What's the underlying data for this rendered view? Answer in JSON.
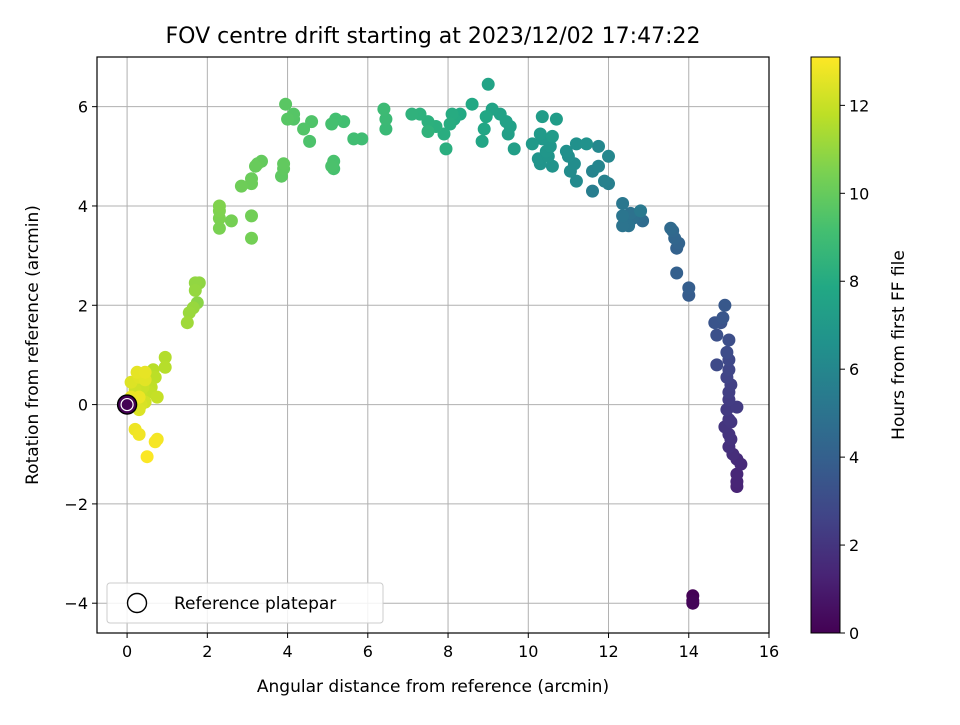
{
  "chart_data": {
    "type": "scatter",
    "title": "FOV centre drift starting at 2023/12/02 17:47:22",
    "xlabel": "Angular distance from reference (arcmin)",
    "ylabel": "Rotation from reference (arcmin)",
    "xlim": [
      -0.75,
      16.0
    ],
    "ylim": [
      -4.6,
      7.0
    ],
    "xticks": [
      0,
      2,
      4,
      6,
      8,
      10,
      12,
      14,
      16
    ],
    "yticks": [
      -4,
      -2,
      0,
      2,
      4,
      6
    ],
    "grid": true,
    "legend": {
      "placement": "lower-left",
      "entries": [
        "Reference platepar"
      ]
    },
    "reference_point": {
      "x": 0,
      "y": 0
    },
    "colorbar": {
      "label": "Hours from first FF file",
      "range": [
        0,
        13.1
      ],
      "ticks": [
        0,
        2,
        4,
        6,
        8,
        10,
        12
      ],
      "colormap": "viridis"
    },
    "series": [
      {
        "columns": [
          "x",
          "y",
          "hours"
        ],
        "points": [
          [
            14.1,
            -3.85,
            0.05
          ],
          [
            14.1,
            -3.95,
            0.1
          ],
          [
            14.1,
            -4.0,
            0.15
          ],
          [
            15.2,
            -1.65,
            1.3
          ],
          [
            15.2,
            -1.55,
            1.35
          ],
          [
            15.2,
            -1.4,
            1.45
          ],
          [
            15.3,
            -1.2,
            1.55
          ],
          [
            15.2,
            -1.1,
            1.6
          ],
          [
            15.1,
            -1.0,
            1.7
          ],
          [
            15.0,
            -0.85,
            1.8
          ],
          [
            15.05,
            -0.7,
            1.9
          ],
          [
            15.0,
            -0.6,
            1.95
          ],
          [
            14.9,
            -0.45,
            2.0
          ],
          [
            15.05,
            -0.35,
            2.05
          ],
          [
            15.0,
            -0.3,
            2.1
          ],
          [
            14.95,
            -0.1,
            2.2
          ],
          [
            15.2,
            -0.05,
            2.25
          ],
          [
            15.0,
            0.1,
            2.3
          ],
          [
            15.0,
            0.25,
            2.4
          ],
          [
            15.05,
            0.4,
            2.5
          ],
          [
            14.95,
            0.55,
            2.6
          ],
          [
            15.0,
            0.7,
            2.7
          ],
          [
            15.0,
            0.9,
            2.8
          ],
          [
            14.7,
            0.8,
            2.9
          ],
          [
            14.95,
            1.05,
            3.0
          ],
          [
            15.0,
            1.3,
            3.1
          ],
          [
            14.7,
            1.4,
            3.2
          ],
          [
            14.8,
            1.65,
            3.3
          ],
          [
            14.65,
            1.65,
            3.4
          ],
          [
            14.85,
            1.75,
            3.5
          ],
          [
            14.9,
            2.0,
            3.6
          ],
          [
            14.0,
            2.2,
            3.8
          ],
          [
            14.0,
            2.35,
            3.9
          ],
          [
            13.7,
            2.65,
            4.0
          ],
          [
            13.7,
            3.15,
            4.1
          ],
          [
            13.75,
            3.25,
            4.2
          ],
          [
            13.65,
            3.35,
            4.3
          ],
          [
            13.6,
            3.5,
            4.4
          ],
          [
            13.55,
            3.55,
            4.5
          ],
          [
            12.85,
            3.7,
            4.6
          ],
          [
            12.75,
            3.8,
            4.7
          ],
          [
            12.6,
            3.75,
            4.8
          ],
          [
            12.55,
            3.85,
            4.9
          ],
          [
            12.5,
            3.6,
            5.0
          ],
          [
            12.35,
            3.6,
            5.05
          ],
          [
            12.35,
            3.8,
            5.1
          ],
          [
            12.35,
            4.05,
            5.2
          ],
          [
            12.8,
            3.9,
            5.3
          ],
          [
            11.6,
            4.3,
            5.5
          ],
          [
            12.0,
            4.45,
            5.6
          ],
          [
            11.9,
            4.5,
            5.7
          ],
          [
            11.6,
            4.7,
            5.8
          ],
          [
            11.75,
            4.8,
            5.9
          ],
          [
            12.0,
            5.0,
            6.0
          ],
          [
            11.75,
            5.2,
            6.1
          ],
          [
            11.2,
            4.5,
            6.2
          ],
          [
            11.05,
            4.7,
            6.3
          ],
          [
            11.15,
            4.85,
            6.35
          ],
          [
            11.0,
            5.0,
            6.4
          ],
          [
            10.95,
            5.1,
            6.5
          ],
          [
            11.2,
            5.25,
            6.55
          ],
          [
            11.45,
            5.25,
            6.6
          ],
          [
            10.6,
            4.8,
            6.65
          ],
          [
            10.3,
            4.85,
            6.7
          ],
          [
            10.25,
            4.95,
            6.75
          ],
          [
            10.5,
            5.0,
            6.8
          ],
          [
            10.45,
            5.1,
            6.85
          ],
          [
            10.55,
            5.2,
            6.9
          ],
          [
            10.35,
            5.35,
            6.95
          ],
          [
            10.1,
            5.25,
            7.0
          ],
          [
            10.3,
            5.45,
            7.05
          ],
          [
            10.6,
            5.4,
            7.1
          ],
          [
            10.7,
            5.75,
            7.15
          ],
          [
            10.35,
            5.8,
            7.2
          ],
          [
            9.65,
            5.15,
            7.3
          ],
          [
            9.5,
            5.45,
            7.35
          ],
          [
            9.55,
            5.6,
            7.4
          ],
          [
            9.45,
            5.7,
            7.45
          ],
          [
            9.3,
            5.85,
            7.5
          ],
          [
            9.1,
            5.95,
            7.55
          ],
          [
            9.0,
            6.45,
            7.6
          ],
          [
            8.85,
            5.3,
            7.7
          ],
          [
            8.9,
            5.55,
            7.75
          ],
          [
            8.95,
            5.8,
            7.8
          ],
          [
            8.6,
            6.05,
            7.85
          ],
          [
            8.3,
            5.85,
            7.9
          ],
          [
            8.15,
            5.75,
            8.0
          ],
          [
            8.1,
            5.85,
            8.05
          ],
          [
            8.05,
            5.65,
            8.1
          ],
          [
            7.9,
            5.45,
            8.15
          ],
          [
            7.95,
            5.15,
            8.2
          ],
          [
            7.7,
            5.6,
            8.25
          ],
          [
            7.5,
            5.7,
            8.3
          ],
          [
            7.3,
            5.85,
            8.35
          ],
          [
            7.1,
            5.85,
            8.4
          ],
          [
            7.5,
            5.5,
            8.45
          ],
          [
            6.45,
            5.55,
            8.8
          ],
          [
            6.45,
            5.75,
            8.85
          ],
          [
            6.4,
            5.95,
            8.9
          ],
          [
            5.85,
            5.35,
            9.0
          ],
          [
            5.65,
            5.35,
            9.05
          ],
          [
            5.4,
            5.7,
            9.1
          ],
          [
            5.2,
            5.75,
            9.15
          ],
          [
            5.1,
            5.65,
            9.2
          ],
          [
            5.15,
            4.75,
            9.25
          ],
          [
            5.15,
            4.9,
            9.3
          ],
          [
            5.1,
            4.8,
            9.35
          ],
          [
            4.55,
            5.3,
            9.4
          ],
          [
            4.6,
            5.7,
            9.45
          ],
          [
            4.4,
            5.55,
            9.5
          ],
          [
            4.15,
            5.75,
            9.55
          ],
          [
            4.15,
            5.85,
            9.6
          ],
          [
            4.0,
            5.75,
            9.65
          ],
          [
            3.95,
            6.05,
            9.7
          ],
          [
            3.85,
            4.6,
            9.8
          ],
          [
            3.9,
            4.75,
            9.85
          ],
          [
            3.9,
            4.85,
            9.9
          ],
          [
            3.35,
            4.9,
            9.95
          ],
          [
            3.25,
            4.85,
            10.0
          ],
          [
            3.2,
            4.8,
            10.05
          ],
          [
            3.1,
            4.55,
            10.1
          ],
          [
            3.1,
            4.45,
            10.15
          ],
          [
            2.85,
            4.4,
            10.2
          ],
          [
            3.1,
            3.8,
            10.25
          ],
          [
            3.1,
            3.35,
            10.3
          ],
          [
            2.6,
            3.7,
            10.35
          ],
          [
            2.3,
            3.55,
            10.45
          ],
          [
            2.3,
            3.75,
            10.5
          ],
          [
            2.3,
            3.9,
            10.55
          ],
          [
            2.3,
            4.0,
            10.6
          ],
          [
            1.75,
            2.05,
            10.8
          ],
          [
            1.8,
            2.45,
            10.9
          ],
          [
            1.7,
            2.45,
            10.95
          ],
          [
            1.7,
            2.3,
            11.0
          ],
          [
            1.65,
            1.95,
            11.05
          ],
          [
            1.55,
            1.85,
            11.1
          ],
          [
            1.5,
            1.65,
            11.2
          ],
          [
            0.95,
            0.95,
            11.6
          ],
          [
            0.95,
            0.75,
            11.65
          ],
          [
            0.65,
            0.7,
            11.7
          ],
          [
            0.7,
            0.55,
            11.75
          ],
          [
            0.5,
            0.5,
            11.8
          ],
          [
            0.6,
            0.35,
            11.85
          ],
          [
            0.55,
            0.25,
            11.9
          ],
          [
            0.75,
            0.15,
            11.95
          ],
          [
            0.35,
            0.2,
            12.0
          ],
          [
            0.4,
            0.35,
            12.05
          ],
          [
            0.2,
            0.45,
            12.1
          ],
          [
            0.2,
            0.3,
            12.15
          ],
          [
            0.45,
            0.05,
            12.2
          ],
          [
            0.25,
            0.05,
            12.25
          ],
          [
            0.15,
            0.0,
            12.3
          ],
          [
            0.35,
            0.0,
            12.35
          ],
          [
            0.3,
            -0.1,
            12.4
          ],
          [
            0.1,
            0.45,
            12.45
          ],
          [
            0.3,
            0.55,
            12.5
          ],
          [
            0.45,
            0.5,
            12.55
          ],
          [
            0.25,
            0.65,
            12.6
          ],
          [
            0.45,
            0.65,
            12.65
          ],
          [
            0.1,
            0.15,
            12.7
          ],
          [
            0.3,
            0.15,
            12.75
          ],
          [
            0.2,
            -0.5,
            12.8
          ],
          [
            0.3,
            -0.6,
            12.85
          ],
          [
            0.75,
            -0.7,
            12.9
          ],
          [
            0.7,
            -0.75,
            12.95
          ],
          [
            0.5,
            -1.05,
            13.05
          ]
        ]
      }
    ]
  }
}
